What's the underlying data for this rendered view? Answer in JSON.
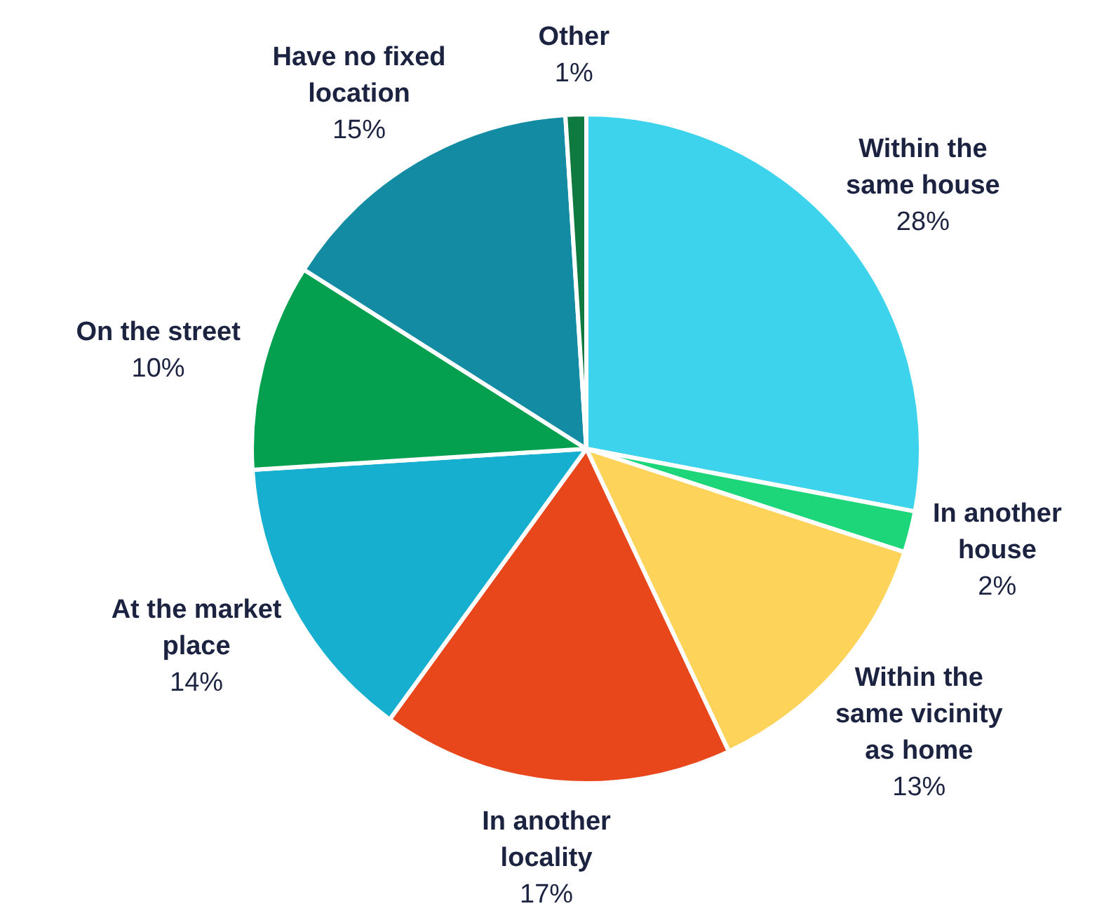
{
  "chart_data": {
    "type": "pie",
    "categories": [
      "Within the same house",
      "In another house",
      "Within the same vicinity as home",
      "In another locality",
      "At the market place",
      "On the street",
      "Have no fixed location",
      "Other"
    ],
    "values": [
      28,
      2,
      13,
      17,
      14,
      10,
      15,
      1
    ],
    "colors": [
      "#3dd3ec",
      "#1ed67a",
      "#fed35a",
      "#e8461b",
      "#17afd0",
      "#04a050",
      "#138ba3",
      "#0f7a3f"
    ],
    "value_labels": [
      "28%",
      "2%",
      "13%",
      "17%",
      "14%",
      "10%",
      "15%",
      "1%"
    ],
    "legend": false
  }
}
